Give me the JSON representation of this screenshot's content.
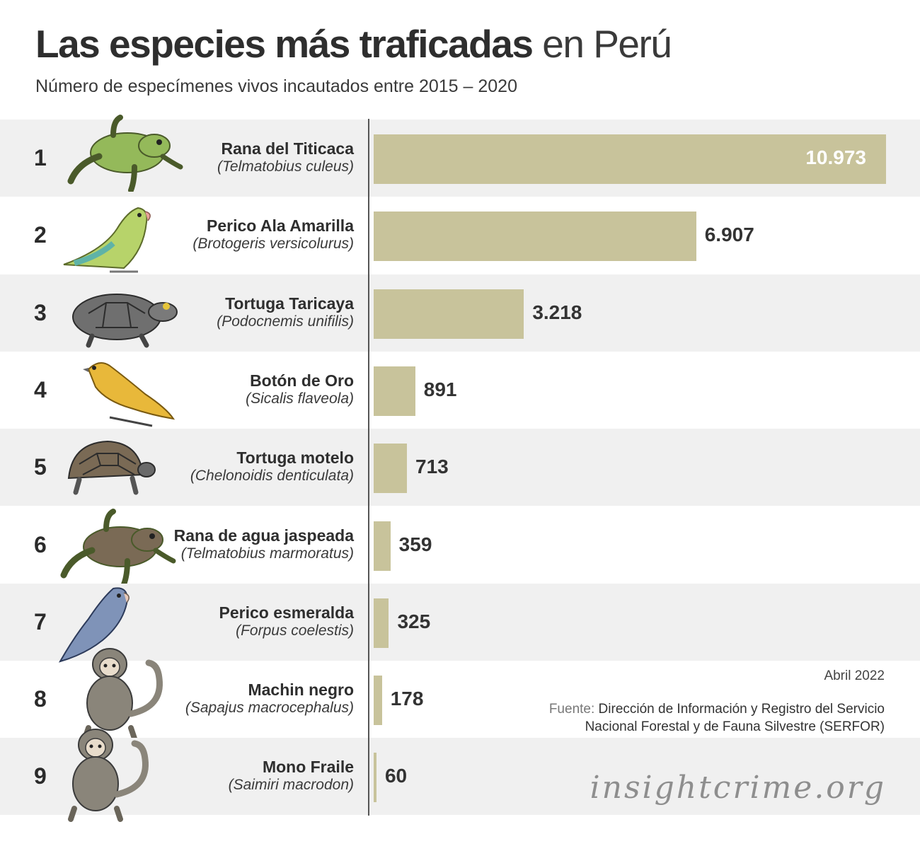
{
  "title_bold": "Las especies más traficadas",
  "title_light": "en Perú",
  "subtitle": "Número de especímenes vivos incautados entre 2015 – 2020",
  "chart_data": {
    "type": "bar",
    "orientation": "horizontal",
    "title": "Las especies más traficadas en Perú",
    "subtitle": "Número de especímenes vivos incautados entre 2015 – 2020",
    "categories": [
      "Rana del Titicaca",
      "Perico Ala Amarilla",
      "Tortuga Taricaya",
      "Botón de Oro",
      "Tortuga motelo",
      "Rana de agua jaspeada",
      "Perico esmeralda",
      "Machin negro",
      "Mono Fraile"
    ],
    "scientific_names": [
      "(Telmatobius culeus)",
      "(Brotogeris versicolurus)",
      "(Podocnemis unifilis)",
      "(Sicalis flaveola)",
      "(Chelonoidis denticulata)",
      "(Telmatobius marmoratus)",
      "(Forpus coelestis)",
      "(Sapajus macrocephalus)",
      "(Saimiri macrodon)"
    ],
    "ranks": [
      "1",
      "2",
      "3",
      "4",
      "5",
      "6",
      "7",
      "8",
      "9"
    ],
    "values": [
      10973,
      6907,
      3218,
      891,
      713,
      359,
      325,
      178,
      60
    ],
    "value_labels": [
      "10.973",
      "6.907",
      "3.218",
      "891",
      "713",
      "359",
      "325",
      "178",
      "60"
    ],
    "xlim": [
      0,
      10973
    ],
    "bar_color": "#c8c39b",
    "row_alt_color": "#f0f0f0"
  },
  "animal_icons": [
    "frog-icon",
    "parakeet-icon",
    "turtle-icon",
    "finch-icon",
    "tortoise-icon",
    "frog-icon",
    "parrot-icon",
    "monkey-icon",
    "monkey-icon"
  ],
  "footer": {
    "date": "Abril 2022",
    "source_label": "Fuente:",
    "source_line1": "Dirección de Información y Registro del Servicio",
    "source_line2": "Nacional Forestal y de Fauna Silvestre (SERFOR)",
    "brand": "insightcrime.org"
  }
}
